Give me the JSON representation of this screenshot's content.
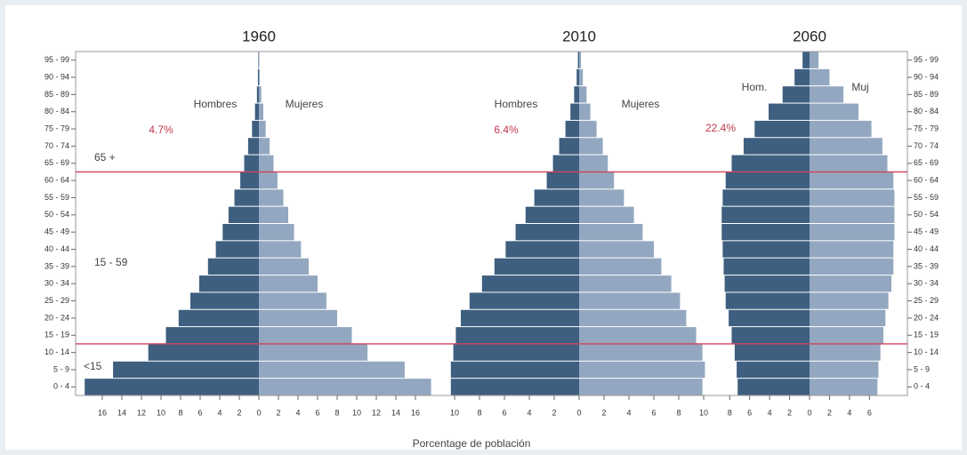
{
  "chart_data": {
    "type": "pyramid",
    "x_label": "Porcentage de población",
    "categories": [
      "0 - 4",
      "5 - 9",
      "10 - 14",
      "15 - 19",
      "20 - 24",
      "25 - 29",
      "30 - 34",
      "35 - 39",
      "40 - 44",
      "45 - 49",
      "50 - 54",
      "55 - 59",
      "60 - 64",
      "65 - 69",
      "70 - 74",
      "75 - 79",
      "80 - 84",
      "85 - 89",
      "90 - 94",
      "95 - 99"
    ],
    "group_labels": [
      "65 +",
      "15 - 59",
      "<15"
    ],
    "panels": [
      {
        "title": "1960",
        "share_label": "4.7%",
        "xlim": [
          -18,
          18
        ],
        "xticks": [
          {
            "value": -16,
            "label": "16"
          },
          {
            "value": -14,
            "label": "14"
          },
          {
            "value": -12,
            "label": "12"
          },
          {
            "value": -10,
            "label": "10"
          },
          {
            "value": -8,
            "label": "8"
          },
          {
            "value": -6,
            "label": "6"
          },
          {
            "value": -4,
            "label": "4"
          },
          {
            "value": -2,
            "label": "2"
          },
          0,
          2,
          4,
          6,
          8,
          10,
          12,
          14,
          16
        ],
        "series": [
          {
            "name": "Hombres",
            "color": "#3e5f80",
            "values": [
              -17.8,
              -14.9,
              -11.3,
              -9.5,
              -8.2,
              -7.0,
              -6.1,
              -5.2,
              -4.4,
              -3.7,
              -3.1,
              -2.5,
              -1.9,
              -1.5,
              -1.1,
              -0.7,
              -0.4,
              -0.2,
              -0.1,
              -0.05
            ]
          },
          {
            "name": "Mujeres",
            "color": "#93a8c0",
            "values": [
              17.6,
              14.9,
              11.1,
              9.5,
              8.0,
              6.9,
              6.0,
              5.1,
              4.3,
              3.6,
              3.0,
              2.5,
              1.9,
              1.5,
              1.1,
              0.7,
              0.45,
              0.25,
              0.1,
              0.05
            ]
          }
        ]
      },
      {
        "title": "2010",
        "share_label": "6.4%",
        "xlim": [
          -10.5,
          10.5
        ],
        "xticks": [
          {
            "value": -10,
            "label": "10"
          },
          {
            "value": -8,
            "label": "8"
          },
          {
            "value": -6,
            "label": "6"
          },
          {
            "value": -4,
            "label": "4"
          },
          {
            "value": -2,
            "label": "2"
          },
          0,
          2,
          4,
          6,
          8,
          10
        ],
        "series": [
          {
            "name": "Hombres",
            "color": "#3e5f80",
            "values": [
              -10.3,
              -10.3,
              -10.1,
              -9.9,
              -9.5,
              -8.8,
              -7.8,
              -6.8,
              -5.9,
              -5.1,
              -4.3,
              -3.6,
              -2.6,
              -2.1,
              -1.6,
              -1.1,
              -0.7,
              -0.4,
              -0.2,
              -0.1
            ]
          },
          {
            "name": "Mujeres",
            "color": "#93a8c0",
            "values": [
              9.9,
              10.1,
              9.9,
              9.4,
              8.6,
              8.1,
              7.4,
              6.6,
              6.0,
              5.1,
              4.4,
              3.6,
              2.8,
              2.3,
              1.9,
              1.4,
              0.9,
              0.6,
              0.3,
              0.15
            ]
          }
        ]
      },
      {
        "title": "2060",
        "share_label": "22.4%",
        "xlim": [
          -9,
          9
        ],
        "xticks": [
          {
            "value": -8,
            "label": "8"
          },
          {
            "value": -6,
            "label": "6"
          },
          {
            "value": -4,
            "label": "4"
          },
          {
            "value": -2,
            "label": "2"
          },
          0,
          2,
          4,
          6
        ],
        "series": [
          {
            "name": "Hom.",
            "color": "#3e5f80",
            "values": [
              -7.2,
              -7.3,
              -7.5,
              -7.8,
              -8.1,
              -8.4,
              -8.5,
              -8.6,
              -8.7,
              -8.8,
              -8.8,
              -8.7,
              -8.4,
              -7.8,
              -6.6,
              -5.5,
              -4.1,
              -2.7,
              -1.5,
              -0.7
            ]
          },
          {
            "name": "Muj",
            "color": "#93a8c0",
            "values": [
              6.8,
              6.9,
              7.1,
              7.4,
              7.6,
              7.9,
              8.2,
              8.4,
              8.4,
              8.5,
              8.5,
              8.5,
              8.4,
              7.8,
              7.3,
              6.2,
              4.9,
              3.4,
              2.0,
              0.9
            ]
          }
        ]
      }
    ]
  }
}
